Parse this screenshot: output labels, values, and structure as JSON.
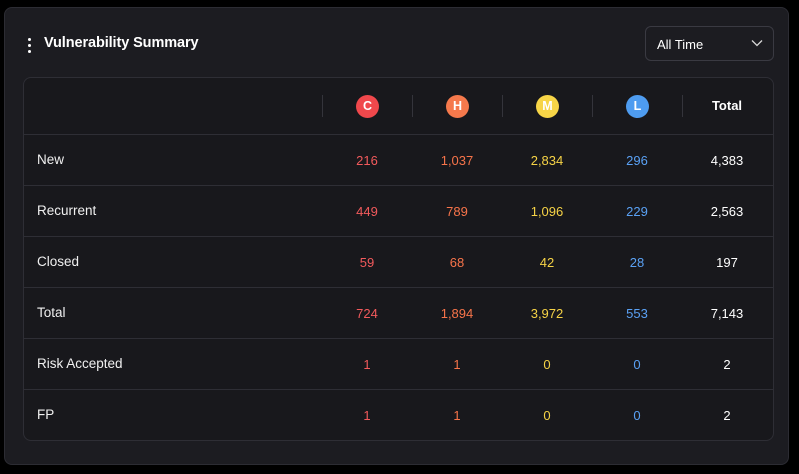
{
  "widget": {
    "title": "Vulnerability Summary",
    "menu_icon": "vertical-dots-icon",
    "time_filter": {
      "selected": "All Time",
      "icon": "chevron-down-icon"
    }
  },
  "columns": {
    "critical": {
      "letter": "C",
      "color": "#f0484c"
    },
    "high": {
      "letter": "H",
      "color": "#f5794c"
    },
    "medium": {
      "letter": "M",
      "color": "#f7d547"
    },
    "low": {
      "letter": "L",
      "color": "#4e9cf0"
    },
    "total": {
      "label": "Total"
    }
  },
  "rows": [
    {
      "label": "New",
      "critical": "216",
      "high": "1,037",
      "medium": "2,834",
      "low": "296",
      "total": "4,383"
    },
    {
      "label": "Recurrent",
      "critical": "449",
      "high": "789",
      "medium": "1,096",
      "low": "229",
      "total": "2,563"
    },
    {
      "label": "Closed",
      "critical": "59",
      "high": "68",
      "medium": "42",
      "low": "28",
      "total": "197"
    },
    {
      "label": "Total",
      "critical": "724",
      "high": "1,894",
      "medium": "3,972",
      "low": "553",
      "total": "7,143"
    },
    {
      "label": "Risk Accepted",
      "critical": "1",
      "high": "1",
      "medium": "0",
      "low": "0",
      "total": "2"
    },
    {
      "label": "FP",
      "critical": "1",
      "high": "1",
      "medium": "0",
      "low": "0",
      "total": "2"
    }
  ]
}
